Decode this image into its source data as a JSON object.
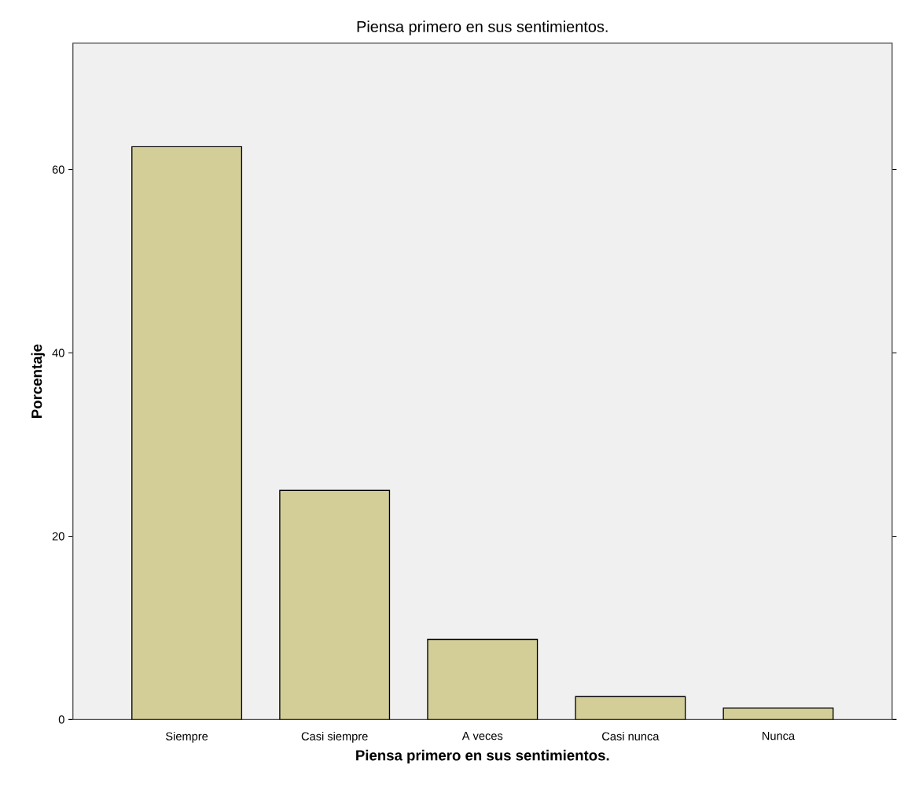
{
  "chart_data": {
    "type": "bar",
    "title": "Piensa primero en sus sentimientos.",
    "xlabel": "Piensa primero en sus sentimientos.",
    "ylabel": "Porcentaje",
    "categories": [
      "Siempre",
      "Casi siempre",
      "A veces",
      "Casi nunca",
      "Nunca"
    ],
    "values": [
      62.5,
      25.0,
      8.75,
      2.5,
      1.25
    ],
    "color": "#d3ce97",
    "ylim": [
      0,
      73.8
    ],
    "yticks": [
      0,
      20,
      40,
      60
    ],
    "grid": false
  }
}
